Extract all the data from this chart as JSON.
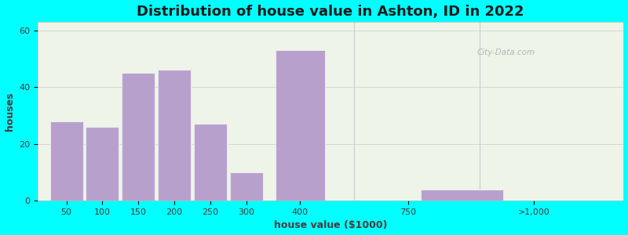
{
  "title": "Distribution of house value in Ashton, ID in 2022",
  "xlabel": "house value ($1000)",
  "ylabel": "houses",
  "bar_centers": [
    0.5,
    1.5,
    2.5,
    3.5,
    4.5,
    5.5,
    7.0,
    11.5
  ],
  "bar_widths": [
    1.0,
    1.0,
    1.0,
    1.0,
    1.0,
    1.0,
    1.5,
    2.5
  ],
  "bar_heights": [
    28,
    26,
    45,
    46,
    27,
    10,
    53,
    4
  ],
  "xtick_positions": [
    0.5,
    1.5,
    2.5,
    3.5,
    4.5,
    5.5,
    7.0,
    10.0,
    13.5
  ],
  "xtick_labels": [
    "50",
    "100",
    "150",
    "200",
    "250",
    "300",
    "400",
    "750",
    ">1,000"
  ],
  "ytick_positions": [
    0,
    20,
    40,
    60
  ],
  "ytick_labels": [
    "0",
    "20",
    "40",
    "60"
  ],
  "ylim": [
    0,
    63
  ],
  "xlim": [
    -0.3,
    16.0
  ],
  "bar_color": "#b8a0cc",
  "bar_edgecolor": "#e8e8f0",
  "bg_outer": "#00ffff",
  "bg_inner": "#eef5e8",
  "title_fontsize": 13,
  "axis_label_fontsize": 9,
  "tick_fontsize": 8,
  "title_color": "#1a1a1a",
  "label_color": "#4a3a3a",
  "watermark_text": "City-Data.com",
  "separator_x": 8.5,
  "separator2_x": 12.0
}
